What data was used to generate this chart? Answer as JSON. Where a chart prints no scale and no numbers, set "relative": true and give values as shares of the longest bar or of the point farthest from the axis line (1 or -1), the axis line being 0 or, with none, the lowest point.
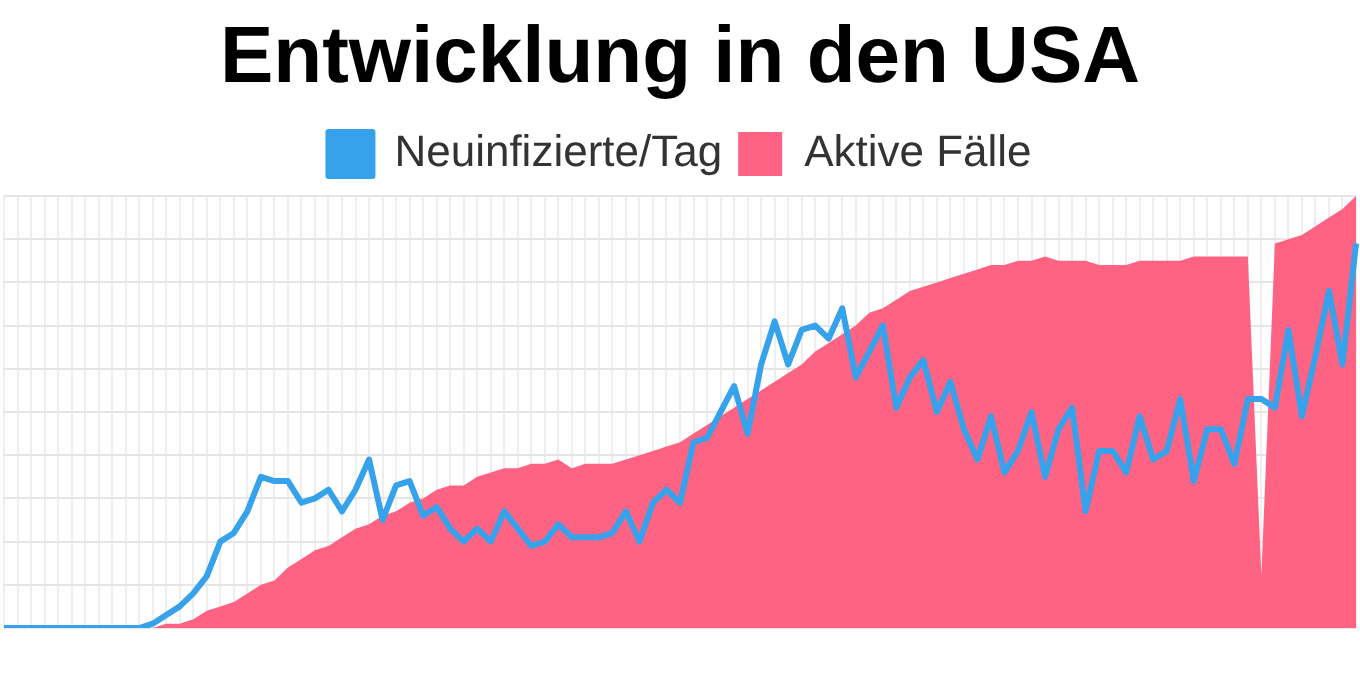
{
  "chart_data": {
    "type": "line",
    "title": "Entwicklung in den USA",
    "relative": true,
    "grid": true,
    "legend": "top",
    "marker": "none",
    "categories": [
      null,
      null,
      null,
      null,
      null,
      null,
      null,
      null,
      null,
      null,
      null,
      null,
      null,
      null,
      null,
      null,
      null,
      null,
      null,
      null,
      null,
      null,
      null,
      null,
      null,
      null,
      null,
      null,
      null,
      null,
      null,
      null,
      null,
      null,
      null,
      null,
      null,
      null,
      null,
      null,
      null,
      null,
      null,
      null,
      null,
      null,
      null,
      null,
      null,
      null,
      null,
      null,
      null,
      null,
      null,
      null,
      null,
      null,
      null,
      null,
      null,
      null,
      null,
      null,
      null,
      null,
      null,
      null,
      null,
      null,
      null,
      null,
      null,
      null,
      null,
      null,
      null,
      null,
      null,
      null,
      null,
      null,
      null,
      null,
      null,
      null,
      null,
      null,
      null,
      null,
      null,
      null,
      null,
      null,
      null,
      null,
      null,
      null,
      null,
      null,
      null
    ],
    "series": [
      {
        "name": "Neuinfizierte/Tag",
        "type": "line",
        "color": "#36a2eb",
        "values": [
          0,
          0,
          0,
          0,
          0,
          0,
          0,
          0,
          0,
          0,
          0,
          0.01,
          0.03,
          0.05,
          0.08,
          0.12,
          0.2,
          0.22,
          0.27,
          0.35,
          0.34,
          0.34,
          0.29,
          0.3,
          0.32,
          0.27,
          0.32,
          0.39,
          0.25,
          0.33,
          0.34,
          0.26,
          0.28,
          0.23,
          0.2,
          0.23,
          0.2,
          0.27,
          0.23,
          0.19,
          0.2,
          0.24,
          0.21,
          0.21,
          0.21,
          0.22,
          0.27,
          0.2,
          0.29,
          0.32,
          0.29,
          0.43,
          0.44,
          0.5,
          0.56,
          0.45,
          0.61,
          0.71,
          0.61,
          0.69,
          0.7,
          0.67,
          0.74,
          0.58,
          0.64,
          0.7,
          0.51,
          0.58,
          0.62,
          0.5,
          0.57,
          0.46,
          0.39,
          0.49,
          0.36,
          0.41,
          0.5,
          0.35,
          0.46,
          0.51,
          0.27,
          0.41,
          0.41,
          0.36,
          0.49,
          0.39,
          0.41,
          0.53,
          0.34,
          0.46,
          0.46,
          0.38,
          0.53,
          0.53,
          0.51,
          0.69,
          0.49,
          0.63,
          0.78,
          0.61,
          0.89
        ]
      },
      {
        "name": "Aktive Fälle",
        "type": "area",
        "color": "#ff6384",
        "values": [
          0,
          0,
          0,
          0,
          0,
          0,
          0,
          0,
          0,
          0,
          0,
          0,
          0.01,
          0.01,
          0.02,
          0.04,
          0.05,
          0.06,
          0.08,
          0.1,
          0.11,
          0.14,
          0.16,
          0.18,
          0.19,
          0.21,
          0.23,
          0.24,
          0.26,
          0.27,
          0.29,
          0.3,
          0.32,
          0.33,
          0.33,
          0.35,
          0.36,
          0.37,
          0.37,
          0.38,
          0.38,
          0.39,
          0.37,
          0.38,
          0.38,
          0.38,
          0.39,
          0.4,
          0.41,
          0.42,
          0.43,
          0.45,
          0.47,
          0.49,
          0.51,
          0.53,
          0.55,
          0.57,
          0.59,
          0.61,
          0.64,
          0.66,
          0.68,
          0.7,
          0.73,
          0.74,
          0.76,
          0.78,
          0.79,
          0.8,
          0.81,
          0.82,
          0.83,
          0.84,
          0.84,
          0.85,
          0.85,
          0.86,
          0.85,
          0.85,
          0.85,
          0.84,
          0.84,
          0.84,
          0.85,
          0.85,
          0.85,
          0.85,
          0.86,
          0.86,
          0.86,
          0.86,
          0.86,
          0.12,
          0.89,
          0.9,
          0.91,
          0.93,
          0.95,
          0.97,
          1
        ]
      }
    ]
  }
}
